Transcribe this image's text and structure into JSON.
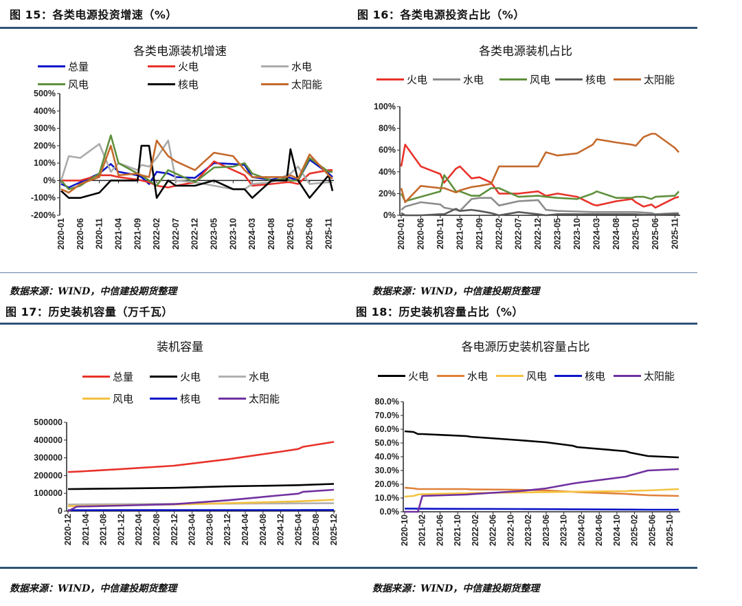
{
  "figures": [
    {
      "title": "图 15：各类电源投资增速（%）",
      "source": "数据来源：WIND，中信建投期货整理"
    },
    {
      "title": "图 16：各类电源投资占比（%）",
      "source": "数据来源：WIND，中信建投期货整理"
    },
    {
      "title": "图 17：历史装机容量（万千瓦）",
      "source": "数据来源：WIND，中信建投期货整理"
    },
    {
      "title": "图 18：历史装机容量占比（%）",
      "source": "数据来源：WIND，中信建投期货整理"
    }
  ],
  "chart_data": [
    {
      "type": "line",
      "title": "各类电源装机增速",
      "xlabel": "",
      "ylabel": "",
      "xlim": [
        "2020-01",
        "2025-12"
      ],
      "ylim": [
        -200,
        500
      ],
      "yticks": [
        -200,
        -100,
        0,
        100,
        200,
        300,
        400,
        500
      ],
      "ytick_labels": [
        "-200%",
        "-100%",
        "0%",
        "100%",
        "200%",
        "300%",
        "400%",
        "500%"
      ],
      "xtick_labels": [
        "2020-01",
        "2020-06",
        "2020-11",
        "2021-04",
        "2021-09",
        "2022-02",
        "2022-07",
        "2022-12",
        "2023-05",
        "2023-10",
        "2024-03",
        "2024-08",
        "2025-01",
        "2025-06",
        "2025-11"
      ],
      "legend": "top",
      "x": [
        "2020-01",
        "2020-03",
        "2020-06",
        "2020-11",
        "2021-02",
        "2021-04",
        "2021-09",
        "2021-10",
        "2021-12",
        "2022-02",
        "2022-05",
        "2022-07",
        "2022-12",
        "2023-05",
        "2023-10",
        "2024-01",
        "2024-03",
        "2024-08",
        "2024-12",
        "2025-01",
        "2025-03",
        "2025-06",
        "2025-11",
        "2025-12"
      ],
      "series": [
        {
          "name": "总量",
          "color": "#0a14c8",
          "values": [
            -20,
            -40,
            -10,
            40,
            95,
            50,
            30,
            20,
            -20,
            50,
            40,
            20,
            15,
            100,
            95,
            90,
            20,
            5,
            20,
            15,
            0,
            120,
            40,
            20
          ]
        },
        {
          "name": "火电",
          "color": "#e8322a",
          "values": [
            0,
            0,
            0,
            30,
            30,
            20,
            5,
            0,
            -10,
            -30,
            -40,
            -30,
            -10,
            110,
            60,
            30,
            -30,
            -20,
            -10,
            -10,
            -20,
            40,
            60,
            60
          ]
        },
        {
          "name": "水电",
          "color": "#ababab",
          "values": [
            0,
            140,
            130,
            210,
            50,
            100,
            60,
            90,
            80,
            130,
            230,
            0,
            -10,
            -30,
            -50,
            -50,
            -20,
            -10,
            30,
            40,
            80,
            -20,
            -10,
            -10
          ]
        },
        {
          "name": "风电",
          "color": "#5e8f3c",
          "values": [
            0,
            -50,
            -30,
            40,
            260,
            100,
            40,
            30,
            0,
            -30,
            60,
            40,
            -10,
            75,
            80,
            100,
            40,
            0,
            10,
            0,
            0,
            130,
            50,
            50
          ]
        },
        {
          "name": "核电",
          "color": "#000000",
          "values": [
            -60,
            -100,
            -100,
            -70,
            0,
            0,
            0,
            200,
            200,
            -100,
            0,
            -30,
            -30,
            0,
            -50,
            -50,
            -100,
            0,
            0,
            180,
            0,
            -100,
            30,
            -60
          ]
        },
        {
          "name": "太阳能",
          "color": "#c4692b",
          "values": [
            -50,
            -70,
            -20,
            20,
            200,
            30,
            40,
            30,
            20,
            230,
            140,
            110,
            60,
            160,
            140,
            60,
            20,
            20,
            20,
            30,
            10,
            150,
            30,
            10
          ]
        }
      ]
    },
    {
      "type": "line",
      "title": "各类电源装机占比",
      "xlabel": "",
      "ylabel": "",
      "xlim": [
        "2020-01",
        "2025-12"
      ],
      "ylim": [
        0,
        100
      ],
      "yticks": [
        0,
        20,
        40,
        60,
        80,
        100
      ],
      "ytick_labels": [
        "0%",
        "20%",
        "40%",
        "60%",
        "80%",
        "100%"
      ],
      "xtick_labels": [
        "2020-01",
        "2020-06",
        "2020-11",
        "2021-04",
        "2021-09",
        "2022-02",
        "2022-07",
        "2022-12",
        "2023-05",
        "2023-10",
        "2024-03",
        "2024-08",
        "2025-01",
        "2025-06",
        "2025-11"
      ],
      "legend": "top",
      "x": [
        "2020-01",
        "2020-02",
        "2020-06",
        "2020-11",
        "2020-12",
        "2021-03",
        "2021-04",
        "2021-07",
        "2021-09",
        "2021-12",
        "2022-02",
        "2022-07",
        "2022-12",
        "2023-02",
        "2023-05",
        "2023-10",
        "2024-02",
        "2024-03",
        "2024-08",
        "2024-12",
        "2025-01",
        "2025-03",
        "2025-05",
        "2025-06",
        "2025-11",
        "2025-12"
      ],
      "series": [
        {
          "name": "火电",
          "color": "#e8322a",
          "values": [
            45,
            65,
            45,
            38,
            30,
            43,
            45,
            34,
            35,
            30,
            20,
            20,
            22,
            18,
            20,
            17,
            10,
            9,
            13,
            15,
            12,
            8,
            10,
            7,
            16,
            17
          ]
        },
        {
          "name": "水电",
          "color": "#8c8c8c",
          "values": [
            5,
            8,
            12,
            10,
            7,
            5,
            4,
            15,
            16,
            16,
            9,
            13,
            14,
            5,
            4,
            3.5,
            3,
            3,
            3,
            3,
            3,
            2.5,
            2,
            1,
            2,
            2
          ]
        },
        {
          "name": "风电",
          "color": "#5e8f3c",
          "values": [
            20,
            13,
            17,
            22,
            37,
            22,
            22,
            18,
            18,
            25,
            25,
            17,
            18,
            17,
            16,
            15,
            20,
            22,
            16,
            16,
            17,
            17,
            15,
            17,
            18,
            22
          ]
        },
        {
          "name": "核电",
          "color": "#595959",
          "values": [
            2,
            0,
            0,
            1,
            1,
            6,
            4,
            5,
            4,
            2,
            0,
            3,
            1,
            0,
            1,
            1,
            1,
            1,
            1,
            1,
            1,
            0.5,
            0.5,
            0.5,
            1,
            1
          ]
        },
        {
          "name": "太阳能",
          "color": "#c4692b",
          "values": [
            25,
            12,
            27,
            25,
            25,
            21,
            23,
            26,
            27,
            29,
            45,
            45,
            45,
            58,
            55,
            57,
            65,
            70,
            67,
            65,
            64,
            72,
            75,
            75,
            62,
            58
          ]
        }
      ]
    },
    {
      "type": "line",
      "title": "装机容量",
      "xlabel": "",
      "ylabel": "",
      "xlim": [
        "2020-12",
        "2025-12"
      ],
      "ylim": [
        0,
        500000
      ],
      "yticks": [
        0,
        100000,
        200000,
        300000,
        400000,
        500000
      ],
      "ytick_labels": [
        "0",
        "100000",
        "200000",
        "300000",
        "400000",
        "500000"
      ],
      "xtick_labels": [
        "2020-12",
        "2021-04",
        "2021-08",
        "2021-12",
        "2022-04",
        "2022-08",
        "2022-12",
        "2023-04",
        "2023-08",
        "2023-12",
        "2024-04",
        "2024-08",
        "2024-12",
        "2025-04",
        "2025-08",
        "2025-12"
      ],
      "legend": "top",
      "x": [
        "2020-12",
        "2021-02",
        "2021-12",
        "2022-12",
        "2023-12",
        "2024-12",
        "2025-04",
        "2025-05",
        "2025-12"
      ],
      "series": [
        {
          "name": "总量",
          "color": "#e8322a",
          "values": [
            220000,
            222000,
            237000,
            256000,
            292000,
            335000,
            350000,
            362000,
            390000
          ]
        },
        {
          "name": "火电",
          "color": "#000000",
          "values": [
            124000,
            124500,
            127000,
            131000,
            139000,
            144000,
            146000,
            147000,
            153000
          ]
        },
        {
          "name": "水电",
          "color": "#b0b0b0",
          "values": [
            37000,
            37500,
            39000,
            41000,
            42000,
            43000,
            43500,
            43500,
            44000
          ]
        },
        {
          "name": "风电",
          "color": "#f2c040",
          "values": [
            28000,
            29000,
            33000,
            37000,
            44000,
            52000,
            55000,
            56000,
            64000
          ]
        },
        {
          "name": "核电",
          "color": "#0a14c8",
          "values": [
            5000,
            5000,
            5300,
            5500,
            5700,
            6000,
            6000,
            6100,
            6200
          ]
        },
        {
          "name": "太阳能",
          "color": "#7030a0",
          "values": [
            0,
            25000,
            31000,
            39000,
            61000,
            89000,
            98000,
            108000,
            120000
          ]
        }
      ]
    },
    {
      "type": "line",
      "title": "各电源历史装机容量占比",
      "xlabel": "",
      "ylabel": "",
      "xlim": [
        "2020-10",
        "2025-12"
      ],
      "ylim": [
        0,
        80
      ],
      "yticks": [
        0,
        10,
        20,
        30,
        40,
        50,
        60,
        70,
        80
      ],
      "ytick_labels": [
        "0.0%",
        "10.0%",
        "20.0%",
        "30.0%",
        "40.0%",
        "50.0%",
        "60.0%",
        "70.0%",
        "80.0%"
      ],
      "xtick_labels": [
        "2020-10",
        "2021-02",
        "2021-06",
        "2021-10",
        "2022-02",
        "2022-06",
        "2022-10",
        "2023-02",
        "2023-06",
        "2023-10",
        "2024-02",
        "2024-06",
        "2024-10",
        "2025-02",
        "2025-06",
        "2025-10"
      ],
      "legend": "top",
      "x": [
        "2020-10",
        "2020-12",
        "2021-01",
        "2021-02",
        "2021-12",
        "2022-01",
        "2022-12",
        "2023-06",
        "2023-12",
        "2024-01",
        "2024-12",
        "2025-01",
        "2025-05",
        "2025-12"
      ],
      "series": [
        {
          "name": "火电",
          "color": "#000000",
          "values": [
            58.5,
            58,
            56.5,
            56.5,
            55,
            54.5,
            52,
            50.5,
            48,
            47,
            44,
            43,
            40.5,
            39.5
          ]
        },
        {
          "name": "水电",
          "color": "#e0803a",
          "values": [
            17.5,
            17,
            16.5,
            16.5,
            16.5,
            16.3,
            16,
            15.5,
            14.5,
            14.3,
            13,
            12.8,
            12,
            11.5
          ]
        },
        {
          "name": "风电",
          "color": "#f5c342",
          "values": [
            11,
            11.5,
            12.5,
            12.8,
            13.5,
            13.6,
            14,
            14.3,
            14.5,
            14.6,
            15,
            15.2,
            15.5,
            16.5
          ]
        },
        {
          "name": "核电",
          "color": "#0a14c8",
          "values": [
            2.3,
            2.3,
            2.2,
            2.2,
            2.1,
            2.1,
            2,
            1.9,
            1.8,
            1.8,
            1.6,
            1.6,
            1.5,
            1.5
          ]
        },
        {
          "name": "太阳能",
          "color": "#7030a0",
          "values": [
            0,
            0,
            0,
            11.5,
            12.5,
            12.8,
            15,
            17,
            20.5,
            21,
            25.5,
            26.5,
            30,
            31
          ]
        }
      ]
    }
  ]
}
